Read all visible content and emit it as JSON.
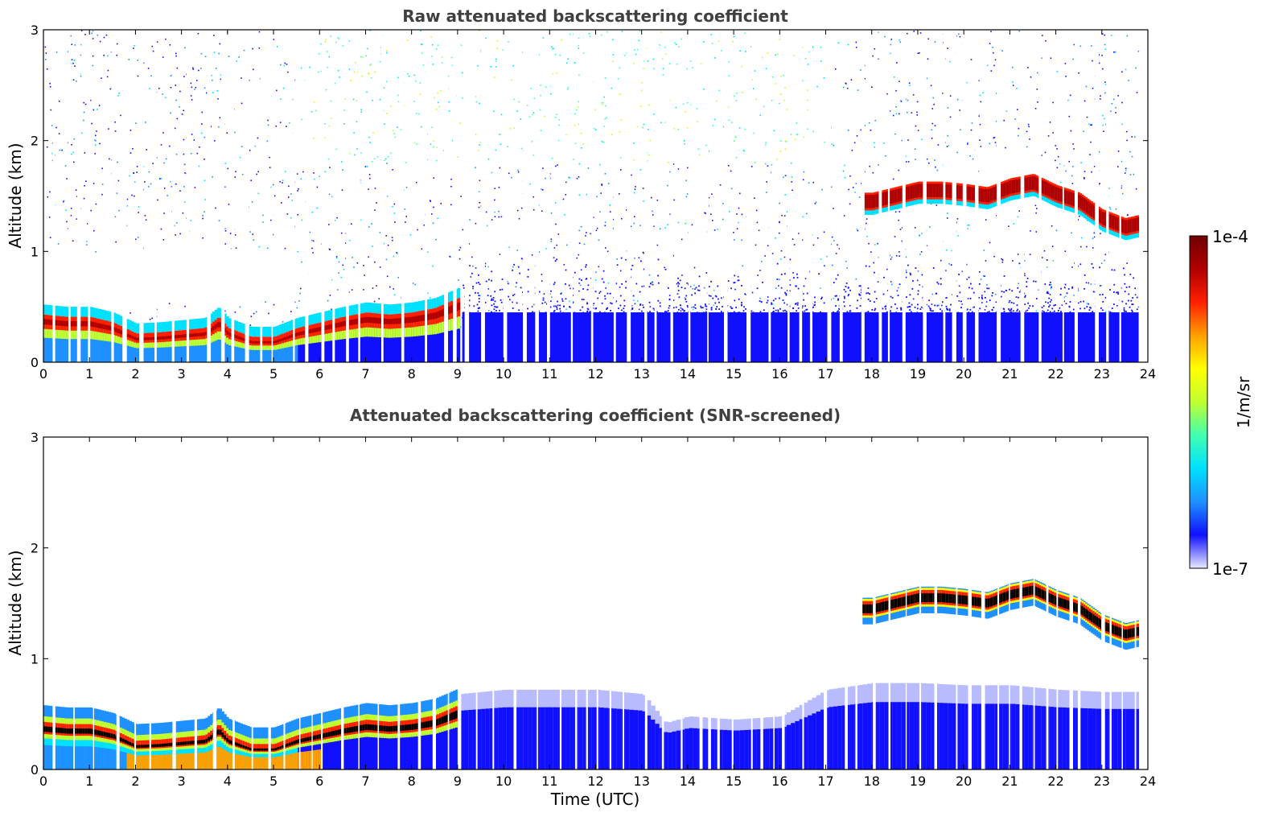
{
  "chart_data": [
    {
      "type": "heatmap",
      "title": "Raw attenuated backscattering coefficient",
      "xlabel": "",
      "ylabel": "Altitude (km)",
      "xlim": [
        0,
        24
      ],
      "ylim": [
        0,
        3
      ],
      "xticks": [
        "0",
        "1",
        "2",
        "3",
        "4",
        "5",
        "6",
        "7",
        "8",
        "9",
        "10",
        "11",
        "12",
        "13",
        "14",
        "15",
        "16",
        "17",
        "18",
        "19",
        "20",
        "21",
        "22",
        "23",
        "24"
      ],
      "yticks": [
        "0",
        "1",
        "2",
        "3"
      ],
      "grid": false,
      "layers": {
        "boundary_layer_top_km": {
          "time_utc": [
            0,
            0.5,
            1,
            1.5,
            2,
            2.5,
            3,
            3.5,
            3.8,
            4,
            4.5,
            5,
            5.5,
            6,
            6.5,
            7,
            7.5,
            8,
            8.5,
            9
          ],
          "altitude_km": [
            0.4,
            0.38,
            0.38,
            0.33,
            0.23,
            0.24,
            0.26,
            0.28,
            0.38,
            0.28,
            0.2,
            0.2,
            0.28,
            0.33,
            0.38,
            0.42,
            0.4,
            0.42,
            0.46,
            0.55
          ]
        },
        "elevated_cloud_layer_km": {
          "time_utc": [
            17.8,
            18,
            18.5,
            19,
            19.5,
            20,
            20.5,
            21,
            21.5,
            22,
            22.5,
            23,
            23.5,
            23.8
          ],
          "altitude_km": [
            1.45,
            1.45,
            1.5,
            1.55,
            1.55,
            1.53,
            1.5,
            1.58,
            1.62,
            1.52,
            1.45,
            1.3,
            1.22,
            1.25
          ]
        }
      }
    },
    {
      "type": "heatmap",
      "title": "Attenuated backscattering coefficient (SNR-screened)",
      "xlabel": "Time (UTC)",
      "ylabel": "Altitude (km)",
      "xlim": [
        0,
        24
      ],
      "ylim": [
        0,
        3
      ],
      "xticks": [
        "0",
        "1",
        "2",
        "3",
        "4",
        "5",
        "6",
        "7",
        "8",
        "9",
        "10",
        "11",
        "12",
        "13",
        "14",
        "15",
        "16",
        "17",
        "18",
        "19",
        "20",
        "21",
        "22",
        "23",
        "24"
      ],
      "yticks": [
        "0",
        "1",
        "2",
        "3"
      ],
      "grid": false,
      "layers": {
        "low_signal_region_top_km": {
          "time_utc": [
            9,
            10,
            11,
            12,
            13,
            13.5,
            14,
            15,
            16,
            17,
            18,
            19,
            20,
            21,
            22,
            23,
            23.8
          ],
          "altitude_km": [
            0.68,
            0.72,
            0.72,
            0.72,
            0.68,
            0.42,
            0.48,
            0.45,
            0.48,
            0.72,
            0.78,
            0.78,
            0.76,
            0.76,
            0.72,
            0.7,
            0.7
          ]
        }
      }
    }
  ],
  "colorbar": {
    "label": "1/m/sr",
    "max_label": "1e-4",
    "min_label": "1e-7",
    "scale": "log",
    "colormap": "jet",
    "colors": [
      "#e8eaff",
      "#1010ff",
      "#1e90ff",
      "#00e0ff",
      "#40ffb0",
      "#c0ff30",
      "#ffff00",
      "#ffa000",
      "#ff2000",
      "#b00000",
      "#700000"
    ]
  }
}
